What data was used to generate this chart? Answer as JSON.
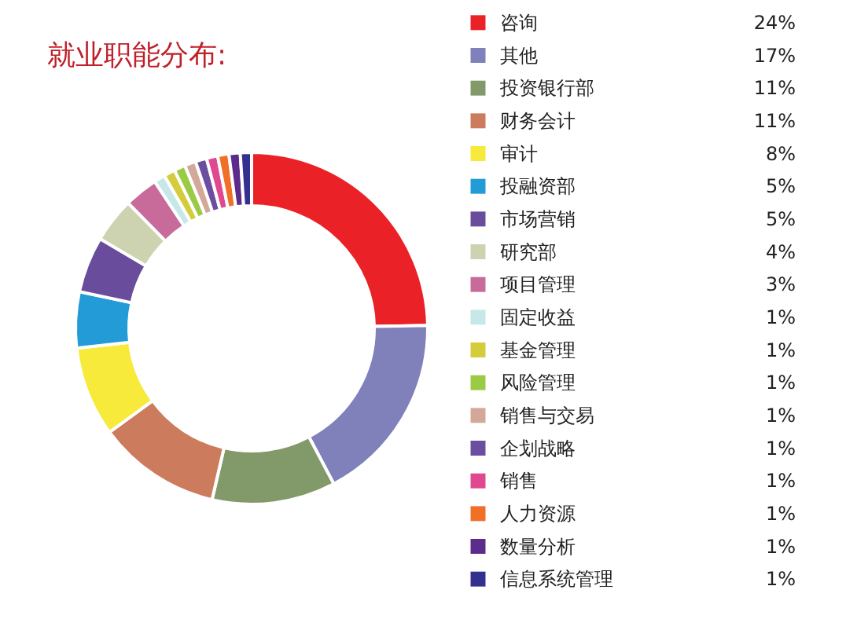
{
  "chart_data": {
    "type": "donut",
    "title": "就业职能分布:",
    "categories": [
      "咨询",
      "其他",
      "投资银行部",
      "财务会计",
      "审计",
      "投融资部",
      "市场营销",
      "研究部",
      "项目管理",
      "固定收益",
      "基金管理",
      "风险管理",
      "销售与交易",
      "企划战略",
      "销售",
      "人力资源",
      "数量分析",
      "信息系统管理"
    ],
    "values": [
      24,
      17,
      11,
      11,
      8,
      5,
      5,
      4,
      3,
      1,
      1,
      1,
      1,
      1,
      1,
      1,
      1,
      1
    ],
    "value_labels": [
      "24%",
      "17%",
      "11%",
      "11%",
      "8%",
      "5%",
      "5%",
      "4%",
      "3%",
      "1%",
      "1%",
      "1%",
      "1%",
      "1%",
      "1%",
      "1%",
      "1%",
      "1%"
    ],
    "colors": [
      "#ea2227",
      "#8080bb",
      "#82996a",
      "#cc7b5c",
      "#f7ea3a",
      "#239bd6",
      "#6a4c9c",
      "#cdd3b0",
      "#c86a9a",
      "#c6e8e8",
      "#d4cc3c",
      "#9bcb44",
      "#d4a898",
      "#6b4ea0",
      "#e04890",
      "#f07028",
      "#5c2c8c",
      "#343090"
    ],
    "legend": "right"
  }
}
